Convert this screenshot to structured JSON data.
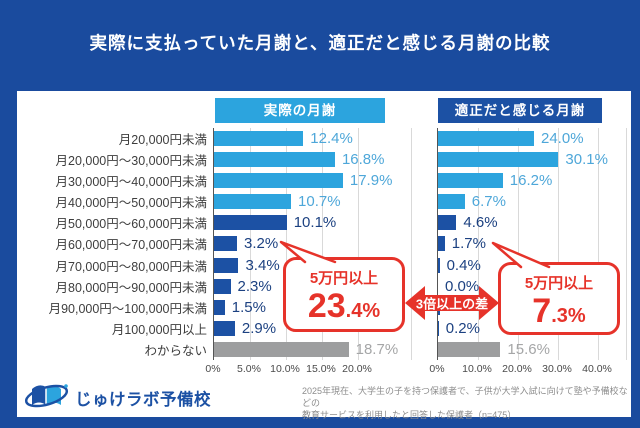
{
  "page": {
    "title": "実際に支払っていた月謝と、適正だと感じる月謝の比較"
  },
  "colors": {
    "background": "#1A4B9E",
    "card": "#FFFFFF",
    "light_blue": "#2CA4DE",
    "dark_blue": "#1C51A4",
    "bar_gray": "#9D9E9F",
    "light_label": "#4EA7D9",
    "dark_label": "#1C4181",
    "gray_label": "#A5A6A7",
    "category_text": "#3E3E3E",
    "axis_text": "#4A4A4A",
    "gridline": "#D9D9D9",
    "axis_line": "#555555",
    "red": "#E6332A",
    "source_text": "#8D8D8D"
  },
  "chart_data": {
    "type": "bar",
    "orientation": "horizontal",
    "grid": true,
    "categories": [
      "月20,000円未満",
      "月20,000円〜30,000円未満",
      "月30,000円〜40,000円未満",
      "月40,000円〜50,000円未満",
      "月50,000円〜60,000円未満",
      "月60,000円〜70,000円未満",
      "月70,000円〜80,000円未満",
      "月80,000円〜90,000円未満",
      "月90,000円〜100,000円未満",
      "月100,000円以上",
      "わからない"
    ],
    "row_styles": [
      "light",
      "light",
      "light",
      "light",
      "dark",
      "dark",
      "dark",
      "dark",
      "dark",
      "dark",
      "gray"
    ],
    "series": [
      {
        "name": "実際の月謝",
        "values": [
          12.4,
          16.8,
          17.9,
          10.7,
          10.1,
          3.2,
          3.4,
          2.3,
          1.5,
          2.9,
          18.7
        ],
        "value_labels": [
          "12.4%",
          "16.8%",
          "17.9%",
          "10.7%",
          "10.1%",
          "3.2%",
          "3.4%",
          "2.3%",
          "1.5%",
          "2.9%",
          "18.7%"
        ],
        "axis_ticks": [
          "0%",
          "5.0%",
          "10.0%",
          "15.0%",
          "20.0%"
        ],
        "axis_tick_values": [
          0,
          5,
          10,
          15,
          20
        ],
        "axis_max_percent": 20
      },
      {
        "name": "適正だと感じる月謝",
        "values": [
          24.0,
          30.1,
          16.2,
          6.7,
          4.6,
          1.7,
          0.4,
          0.0,
          0.4,
          0.2,
          15.6
        ],
        "value_labels": [
          "24.0%",
          "30.1%",
          "16.2%",
          "6.7%",
          "4.6%",
          "1.7%",
          "0.4%",
          "0.0%",
          "",
          "0.2%",
          "15.6%"
        ],
        "axis_ticks": [
          "0%",
          "10.0%",
          "20.0%",
          "30.0%",
          "40.0%"
        ],
        "axis_tick_values": [
          0,
          10,
          20,
          30,
          40
        ],
        "axis_max_percent": 40
      }
    ]
  },
  "annotations": {
    "left_callout": {
      "title": "5万円以上",
      "value_big": "23",
      "value_small": ".4%"
    },
    "right_callout": {
      "title": "5万円以上",
      "value_big": "7",
      "value_small": ".3%"
    },
    "center_arrow_label": "3倍以上の差"
  },
  "footer": {
    "logo_text": "じゅけラボ予備校",
    "source_line1": "2025年現在、大学生の子を持つ保護者で、子供が大学入試に向けて塾や予備校などの",
    "source_line2": "教育サービスを利用したと回答した保護者（n=475）"
  }
}
